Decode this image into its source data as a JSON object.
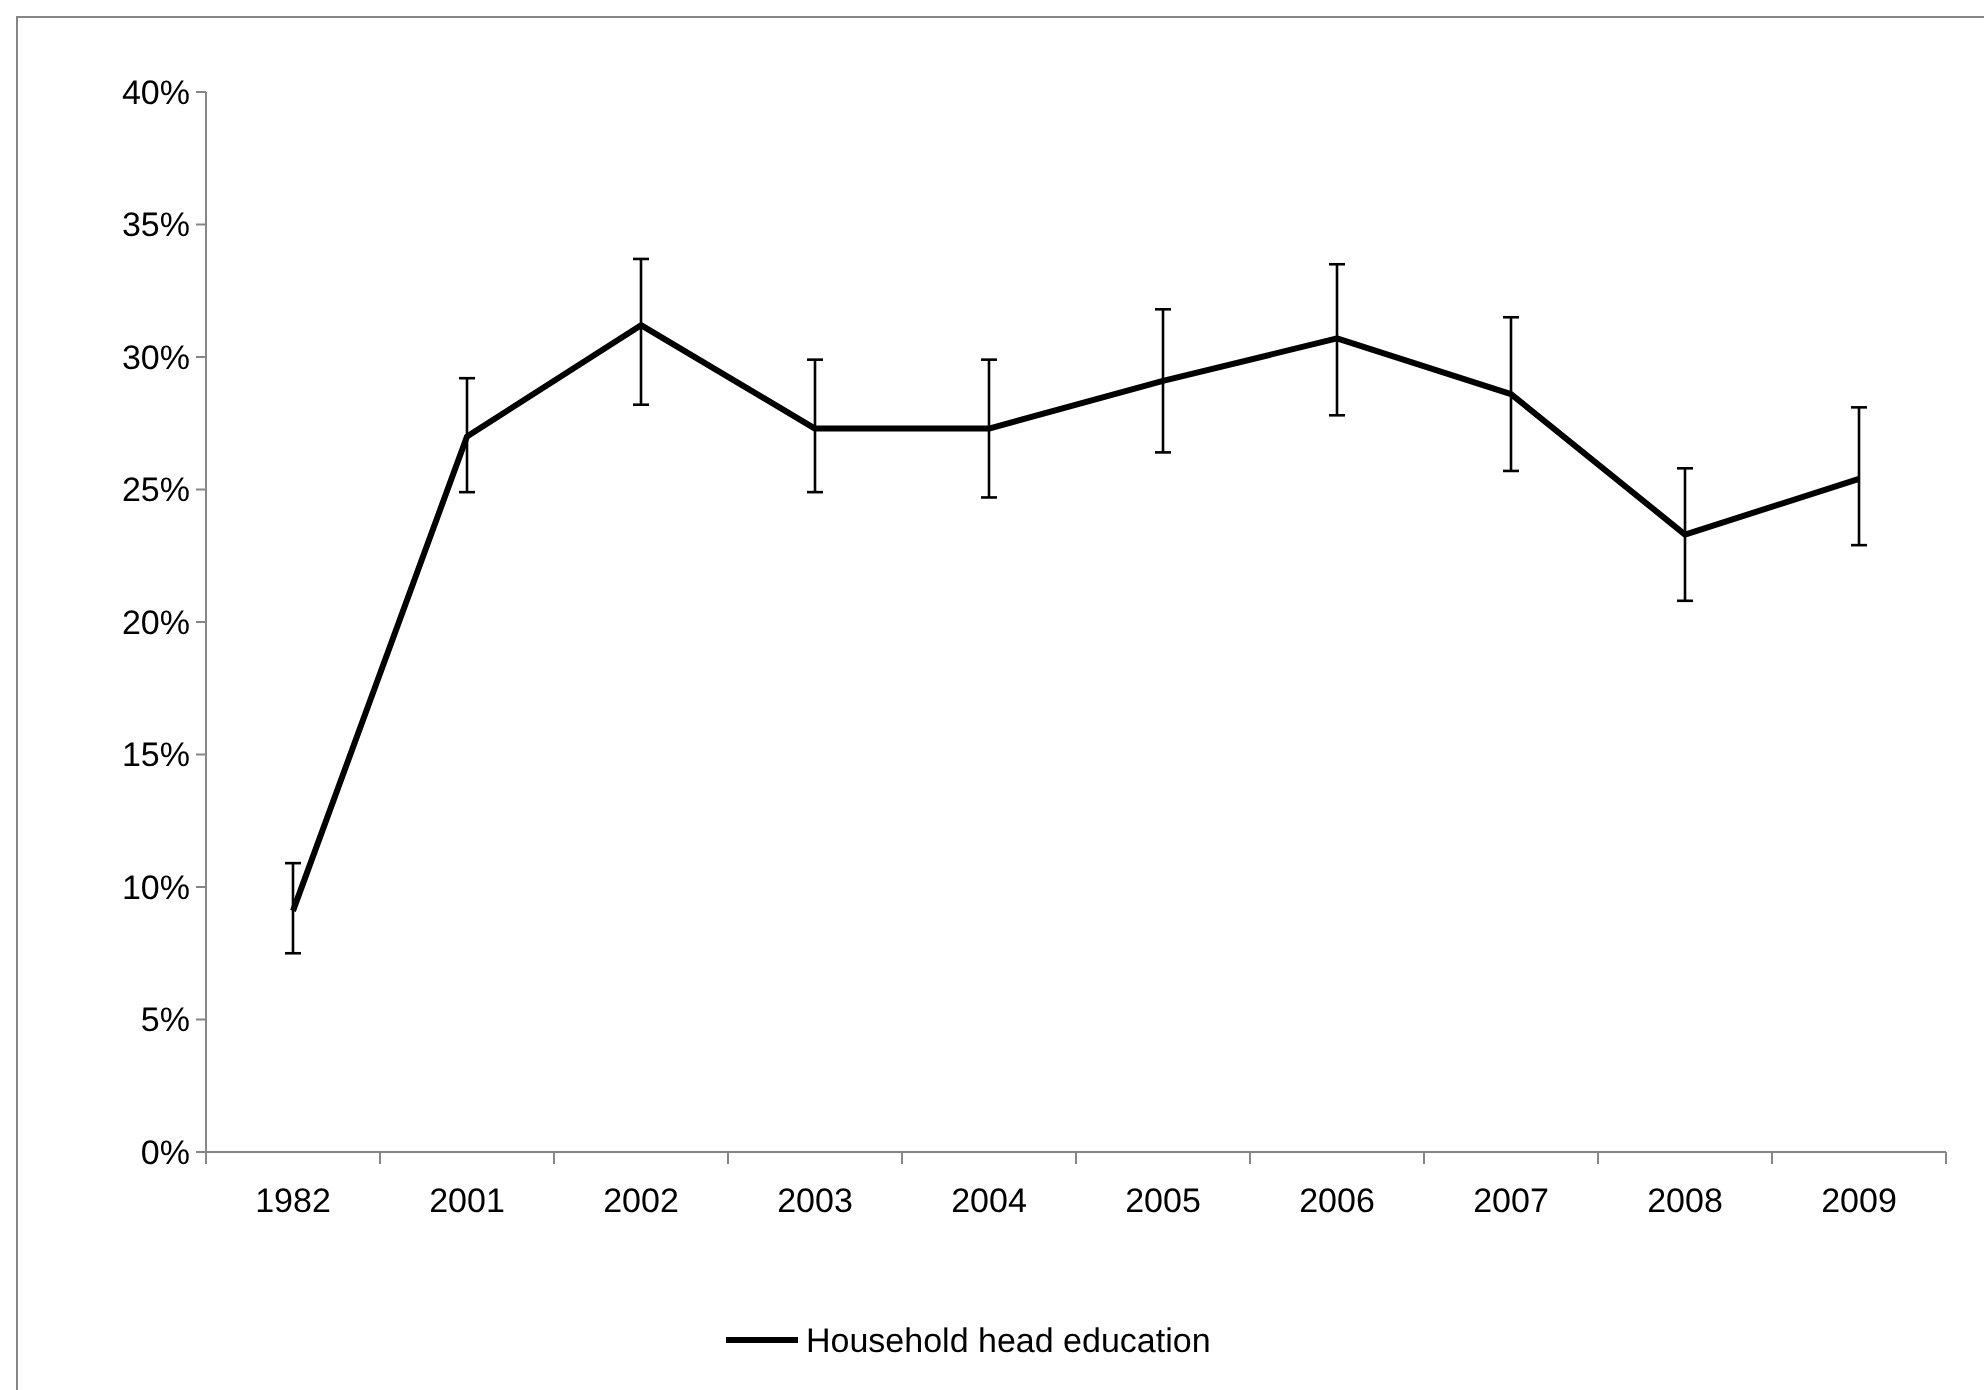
{
  "chart_data": {
    "type": "line",
    "categories": [
      "1982",
      "2001",
      "2002",
      "2003",
      "2004",
      "2005",
      "2006",
      "2007",
      "2008",
      "2009"
    ],
    "series": [
      {
        "name": "Household head education",
        "color": "#000000",
        "values": [
          9.1,
          27.0,
          31.2,
          27.3,
          27.3,
          29.1,
          30.7,
          28.6,
          23.3,
          25.4
        ],
        "errors": [
          [
            7.5,
            10.9
          ],
          [
            24.9,
            29.2
          ],
          [
            28.2,
            33.7
          ],
          [
            24.9,
            29.9
          ],
          [
            24.7,
            29.9
          ],
          [
            26.4,
            31.8
          ],
          [
            27.8,
            33.5
          ],
          [
            25.7,
            31.5
          ],
          [
            20.8,
            25.8
          ],
          [
            22.9,
            28.1
          ]
        ]
      }
    ],
    "ylim": [
      0,
      40
    ],
    "yticks": [
      {
        "value": 0,
        "label": "0%"
      },
      {
        "value": 5,
        "label": "5%"
      },
      {
        "value": 10,
        "label": "10%"
      },
      {
        "value": 15,
        "label": "15%"
      },
      {
        "value": 20,
        "label": "20%"
      },
      {
        "value": 25,
        "label": "25%"
      },
      {
        "value": 30,
        "label": "30%"
      },
      {
        "value": 35,
        "label": "35%"
      },
      {
        "value": 40,
        "label": "40%"
      }
    ],
    "grid": false,
    "legend": "bottom",
    "marker": "none",
    "line_style": "solid"
  }
}
